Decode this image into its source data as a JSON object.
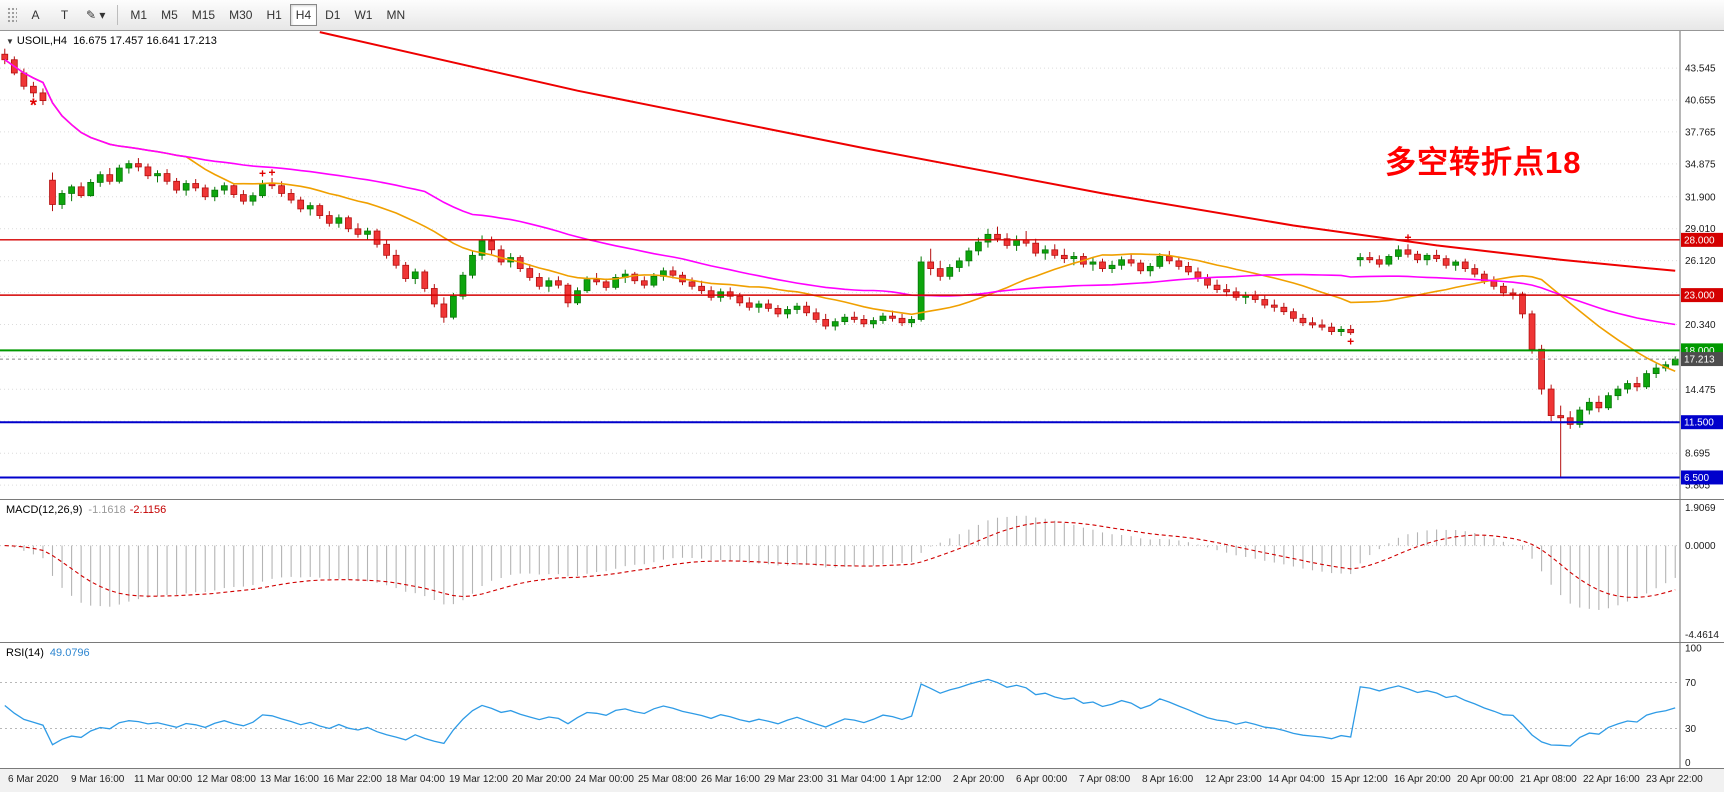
{
  "toolbar": {
    "tools": [
      {
        "label": "A",
        "dropdown": false
      },
      {
        "label": "T",
        "dropdown": false
      },
      {
        "label": "✎",
        "dropdown": true
      }
    ],
    "timeframes": [
      "M1",
      "M5",
      "M15",
      "M30",
      "H1",
      "H4",
      "D1",
      "W1",
      "MN"
    ],
    "active_timeframe": "H4"
  },
  "chart": {
    "collapse_icon": "▼",
    "symbol_period": "USOIL,H4",
    "ohlc_text": "16.675 17.457 16.641 17.213",
    "annotation": "多空转折点18",
    "price_axis": {
      "ticks": [
        {
          "v": 43.545,
          "label": "43.545"
        },
        {
          "v": 40.655,
          "label": "40.655"
        },
        {
          "v": 37.765,
          "label": "37.765"
        },
        {
          "v": 34.875,
          "label": "34.875"
        },
        {
          "v": 31.9,
          "label": "31.900"
        },
        {
          "v": 29.01,
          "label": "29.010"
        },
        {
          "v": 26.12,
          "label": "26.120"
        },
        {
          "v": 20.34,
          "label": "20.340"
        },
        {
          "v": 14.475,
          "label": "14.475"
        },
        {
          "v": 8.695,
          "label": "8.695"
        },
        {
          "v": 5.805,
          "label": "5.805"
        }
      ],
      "grid_values": [
        43.545,
        40.655,
        37.765,
        34.875,
        31.9,
        29.01,
        26.12,
        23.23,
        20.34,
        17.45,
        14.475,
        11.585,
        8.695,
        5.805
      ]
    },
    "hlines": [
      {
        "value": 28.0,
        "label": "28.000",
        "color": "#d40000",
        "width": 1.4
      },
      {
        "value": 23.0,
        "label": "23.000",
        "color": "#d40000",
        "width": 1.4
      },
      {
        "value": 18.0,
        "label": "18.000",
        "color": "#009900",
        "width": 2
      },
      {
        "value": 11.5,
        "label": "11.500",
        "color": "#0000cc",
        "width": 2
      },
      {
        "value": 6.5,
        "label": "6.500",
        "color": "#0000cc",
        "width": 2
      }
    ],
    "current_price": {
      "value": 17.213,
      "label": "17.213",
      "badge_color": "#4d4d4d"
    }
  },
  "macd": {
    "name": "MACD(12,26,9)",
    "value_main": "-1.1618",
    "value_signal": "-2.1156",
    "axis_labels": [
      {
        "v": 1.9069,
        "label": "1.9069"
      },
      {
        "v": 0,
        "label": "0.0000"
      },
      {
        "v": -4.4614,
        "label": "-4.4614"
      }
    ]
  },
  "rsi": {
    "name": "RSI(14)",
    "value": "49.0796",
    "axis_labels": [
      {
        "v": 100,
        "label": "100"
      },
      {
        "v": 70,
        "label": "70"
      },
      {
        "v": 30,
        "label": "30"
      },
      {
        "v": 0,
        "label": "0"
      }
    ]
  },
  "time_axis": [
    "6 Mar 2020",
    "9 Mar 16:00",
    "11 Mar 00:00",
    "12 Mar 08:00",
    "13 Mar 16:00",
    "16 Mar 22:00",
    "18 Mar 04:00",
    "19 Mar 12:00",
    "20 Mar 20:00",
    "24 Mar 00:00",
    "25 Mar 08:00",
    "26 Mar 16:00",
    "29 Mar 23:00",
    "31 Mar 04:00",
    "1 Apr 12:00",
    "2 Apr 20:00",
    "6 Apr 00:00",
    "7 Apr 08:00",
    "8 Apr 16:00",
    "12 Apr 23:00",
    "14 Apr 04:00",
    "15 Apr 12:00",
    "16 Apr 20:00",
    "20 Apr 00:00",
    "21 Apr 08:00",
    "22 Apr 16:00",
    "23 Apr 22:00"
  ],
  "chart_data": {
    "type": "candlestick",
    "symbol": "USOIL",
    "timeframe": "H4",
    "price_range": {
      "min": 4.55,
      "max": 46.9
    },
    "colors": {
      "up": "#0da50d",
      "up_border": "#067806",
      "down": "#ef3535",
      "down_border": "#b40f0f"
    },
    "candles": [
      [
        44.8,
        45.3,
        43.9,
        44.3
      ],
      [
        44.3,
        44.6,
        42.9,
        43.1
      ],
      [
        43.1,
        43.5,
        41.6,
        41.9
      ],
      [
        41.9,
        42.3,
        40.9,
        41.3
      ],
      [
        41.3,
        41.7,
        40.2,
        40.6
      ],
      [
        33.4,
        34.1,
        30.6,
        31.2
      ],
      [
        31.2,
        32.5,
        30.8,
        32.2
      ],
      [
        32.2,
        33.0,
        31.5,
        32.8
      ],
      [
        32.8,
        33.2,
        31.8,
        32.0
      ],
      [
        32.0,
        33.5,
        31.9,
        33.2
      ],
      [
        33.2,
        34.2,
        32.8,
        33.9
      ],
      [
        33.9,
        34.5,
        33.0,
        33.3
      ],
      [
        33.3,
        34.8,
        33.1,
        34.5
      ],
      [
        34.5,
        35.2,
        34.0,
        34.9
      ],
      [
        34.9,
        35.4,
        34.2,
        34.6
      ],
      [
        34.6,
        34.9,
        33.5,
        33.8
      ],
      [
        33.8,
        34.3,
        33.2,
        34.0
      ],
      [
        34.0,
        34.4,
        33.0,
        33.3
      ],
      [
        33.3,
        33.6,
        32.2,
        32.5
      ],
      [
        32.5,
        33.4,
        32.0,
        33.1
      ],
      [
        33.1,
        33.5,
        32.4,
        32.7
      ],
      [
        32.7,
        33.0,
        31.6,
        31.9
      ],
      [
        31.9,
        32.8,
        31.5,
        32.5
      ],
      [
        32.5,
        33.2,
        32.1,
        32.9
      ],
      [
        32.9,
        33.1,
        31.8,
        32.1
      ],
      [
        32.1,
        32.5,
        31.2,
        31.5
      ],
      [
        31.5,
        32.3,
        31.1,
        32.0
      ],
      [
        32.0,
        33.4,
        31.8,
        33.1
      ],
      [
        33.1,
        33.6,
        32.6,
        32.9
      ],
      [
        32.9,
        33.3,
        31.9,
        32.2
      ],
      [
        32.2,
        32.6,
        31.3,
        31.6
      ],
      [
        31.6,
        31.9,
        30.5,
        30.8
      ],
      [
        30.8,
        31.4,
        30.2,
        31.1
      ],
      [
        31.1,
        31.3,
        29.9,
        30.2
      ],
      [
        30.2,
        30.6,
        29.2,
        29.5
      ],
      [
        29.5,
        30.3,
        29.1,
        30.0
      ],
      [
        30.0,
        30.2,
        28.7,
        29.0
      ],
      [
        29.0,
        29.5,
        28.2,
        28.5
      ],
      [
        28.5,
        29.1,
        28.0,
        28.8
      ],
      [
        28.8,
        29.0,
        27.3,
        27.6
      ],
      [
        27.6,
        28.0,
        26.3,
        26.6
      ],
      [
        26.6,
        27.1,
        25.4,
        25.7
      ],
      [
        25.7,
        26.0,
        24.2,
        24.5
      ],
      [
        24.5,
        25.4,
        24.0,
        25.1
      ],
      [
        25.1,
        25.3,
        23.3,
        23.6
      ],
      [
        23.6,
        24.0,
        21.9,
        22.2
      ],
      [
        22.2,
        22.8,
        20.5,
        21.0
      ],
      [
        21.0,
        23.2,
        20.8,
        22.9
      ],
      [
        22.9,
        25.1,
        22.6,
        24.8
      ],
      [
        24.8,
        27.0,
        24.5,
        26.6
      ],
      [
        26.6,
        28.4,
        26.2,
        27.9
      ],
      [
        27.9,
        28.3,
        26.7,
        27.1
      ],
      [
        27.1,
        27.5,
        25.7,
        26.0
      ],
      [
        26.0,
        26.8,
        25.5,
        26.4
      ],
      [
        26.4,
        26.6,
        25.1,
        25.4
      ],
      [
        25.4,
        25.8,
        24.3,
        24.6
      ],
      [
        24.6,
        25.0,
        23.5,
        23.8
      ],
      [
        23.8,
        24.6,
        23.3,
        24.3
      ],
      [
        24.3,
        24.7,
        23.6,
        23.9
      ],
      [
        23.9,
        24.1,
        21.9,
        22.3
      ],
      [
        22.3,
        23.7,
        22.1,
        23.4
      ],
      [
        23.4,
        24.7,
        23.2,
        24.4
      ],
      [
        24.4,
        25.0,
        23.9,
        24.2
      ],
      [
        24.2,
        24.5,
        23.4,
        23.7
      ],
      [
        23.7,
        24.9,
        23.5,
        24.6
      ],
      [
        24.6,
        25.3,
        24.1,
        24.9
      ],
      [
        24.9,
        25.1,
        24.0,
        24.3
      ],
      [
        24.3,
        24.7,
        23.6,
        23.9
      ],
      [
        23.9,
        25.0,
        23.7,
        24.7
      ],
      [
        24.7,
        25.5,
        24.3,
        25.2
      ],
      [
        25.2,
        25.6,
        24.5,
        24.8
      ],
      [
        24.8,
        25.1,
        23.9,
        24.2
      ],
      [
        24.2,
        24.6,
        23.5,
        23.8
      ],
      [
        23.8,
        24.3,
        23.1,
        23.4
      ],
      [
        23.4,
        23.8,
        22.5,
        22.8
      ],
      [
        22.8,
        23.6,
        22.4,
        23.3
      ],
      [
        23.3,
        23.7,
        22.6,
        22.9
      ],
      [
        22.9,
        23.2,
        22.0,
        22.3
      ],
      [
        22.3,
        22.8,
        21.6,
        21.9
      ],
      [
        21.9,
        22.5,
        21.4,
        22.2
      ],
      [
        22.2,
        22.6,
        21.5,
        21.8
      ],
      [
        21.8,
        22.1,
        21.0,
        21.3
      ],
      [
        21.3,
        22.0,
        20.9,
        21.7
      ],
      [
        21.7,
        22.3,
        21.3,
        22.0
      ],
      [
        22.0,
        22.4,
        21.1,
        21.4
      ],
      [
        21.4,
        21.8,
        20.5,
        20.8
      ],
      [
        20.8,
        21.3,
        19.9,
        20.2
      ],
      [
        20.2,
        20.9,
        19.8,
        20.6
      ],
      [
        20.6,
        21.3,
        20.3,
        21.0
      ],
      [
        21.0,
        21.5,
        20.5,
        20.8
      ],
      [
        20.8,
        21.2,
        20.1,
        20.4
      ],
      [
        20.4,
        21.0,
        20.0,
        20.7
      ],
      [
        20.7,
        21.4,
        20.4,
        21.1
      ],
      [
        21.1,
        21.6,
        20.6,
        20.9
      ],
      [
        20.9,
        21.3,
        20.2,
        20.5
      ],
      [
        20.5,
        21.1,
        20.1,
        20.8
      ],
      [
        20.8,
        26.5,
        20.6,
        26.0
      ],
      [
        26.0,
        27.2,
        24.8,
        25.4
      ],
      [
        25.4,
        26.1,
        24.3,
        24.7
      ],
      [
        24.7,
        25.8,
        24.4,
        25.5
      ],
      [
        25.5,
        26.4,
        25.1,
        26.1
      ],
      [
        26.1,
        27.3,
        25.6,
        27.0
      ],
      [
        27.0,
        28.2,
        26.6,
        27.8
      ],
      [
        27.8,
        29.0,
        27.3,
        28.5
      ],
      [
        28.5,
        29.2,
        27.8,
        28.1
      ],
      [
        28.1,
        28.6,
        27.2,
        27.5
      ],
      [
        27.5,
        28.4,
        27.0,
        28.0
      ],
      [
        28.0,
        28.8,
        27.4,
        27.7
      ],
      [
        27.7,
        28.1,
        26.5,
        26.8
      ],
      [
        26.8,
        27.5,
        26.2,
        27.1
      ],
      [
        27.1,
        27.6,
        26.3,
        26.6
      ],
      [
        26.6,
        27.2,
        25.9,
        26.3
      ],
      [
        26.3,
        26.9,
        25.7,
        26.5
      ],
      [
        26.5,
        26.8,
        25.5,
        25.8
      ],
      [
        25.8,
        26.4,
        25.2,
        26.0
      ],
      [
        26.0,
        26.3,
        25.1,
        25.4
      ],
      [
        25.4,
        26.1,
        25.0,
        25.7
      ],
      [
        25.7,
        26.5,
        25.3,
        26.2
      ],
      [
        26.2,
        26.7,
        25.6,
        25.9
      ],
      [
        25.9,
        26.2,
        24.9,
        25.2
      ],
      [
        25.2,
        25.9,
        24.7,
        25.6
      ],
      [
        25.6,
        26.8,
        25.4,
        26.5
      ],
      [
        26.5,
        27.0,
        25.8,
        26.1
      ],
      [
        26.1,
        26.5,
        25.3,
        25.6
      ],
      [
        25.6,
        26.0,
        24.8,
        25.1
      ],
      [
        25.1,
        25.5,
        24.2,
        24.5
      ],
      [
        24.5,
        24.9,
        23.6,
        23.9
      ],
      [
        23.9,
        24.4,
        23.2,
        23.5
      ],
      [
        23.5,
        24.0,
        22.9,
        23.3
      ],
      [
        23.3,
        23.7,
        22.5,
        22.8
      ],
      [
        22.8,
        23.3,
        22.2,
        23.0
      ],
      [
        23.0,
        23.4,
        22.3,
        22.6
      ],
      [
        22.6,
        23.0,
        21.8,
        22.1
      ],
      [
        22.1,
        22.6,
        21.5,
        21.9
      ],
      [
        21.9,
        22.3,
        21.2,
        21.5
      ],
      [
        21.5,
        21.8,
        20.6,
        20.9
      ],
      [
        20.9,
        21.3,
        20.2,
        20.5
      ],
      [
        20.5,
        21.0,
        20.0,
        20.3
      ],
      [
        20.3,
        20.8,
        19.8,
        20.1
      ],
      [
        20.1,
        20.5,
        19.4,
        19.7
      ],
      [
        19.7,
        20.2,
        19.3,
        19.9
      ],
      [
        19.9,
        20.3,
        19.4,
        19.6
      ],
      [
        26.2,
        26.8,
        25.6,
        26.4
      ],
      [
        26.4,
        26.9,
        25.9,
        26.2
      ],
      [
        26.2,
        26.6,
        25.5,
        25.8
      ],
      [
        25.8,
        26.7,
        25.6,
        26.5
      ],
      [
        26.5,
        27.5,
        26.2,
        27.1
      ],
      [
        27.1,
        27.6,
        26.4,
        26.7
      ],
      [
        26.7,
        27.0,
        25.9,
        26.2
      ],
      [
        26.2,
        26.8,
        25.7,
        26.6
      ],
      [
        26.6,
        27.1,
        26.0,
        26.3
      ],
      [
        26.3,
        26.6,
        25.4,
        25.7
      ],
      [
        25.7,
        26.2,
        25.2,
        26.0
      ],
      [
        26.0,
        26.3,
        25.1,
        25.4
      ],
      [
        25.4,
        25.8,
        24.6,
        24.9
      ],
      [
        24.9,
        25.2,
        24.0,
        24.3
      ],
      [
        24.3,
        24.7,
        23.5,
        23.8
      ],
      [
        23.8,
        24.1,
        22.9,
        23.2
      ],
      [
        23.2,
        23.6,
        22.6,
        23.1
      ],
      [
        23.1,
        23.3,
        20.9,
        21.3
      ],
      [
        21.3,
        21.6,
        17.7,
        18.1
      ],
      [
        18.1,
        18.5,
        14.0,
        14.5
      ],
      [
        14.5,
        14.9,
        11.6,
        12.1
      ],
      [
        12.1,
        13.0,
        6.5,
        11.9
      ],
      [
        11.9,
        12.5,
        10.9,
        11.3
      ],
      [
        11.3,
        12.9,
        11.0,
        12.6
      ],
      [
        12.6,
        13.7,
        12.2,
        13.3
      ],
      [
        13.3,
        13.9,
        12.4,
        12.8
      ],
      [
        12.8,
        14.2,
        12.6,
        13.9
      ],
      [
        13.9,
        14.8,
        13.5,
        14.5
      ],
      [
        14.5,
        15.3,
        14.1,
        15.0
      ],
      [
        15.0,
        15.6,
        14.3,
        14.7
      ],
      [
        14.7,
        16.2,
        14.5,
        15.9
      ],
      [
        15.9,
        16.8,
        15.5,
        16.4
      ],
      [
        16.4,
        17.0,
        16.1,
        16.7
      ],
      [
        16.675,
        17.457,
        16.641,
        17.213
      ]
    ],
    "sma_overlays": [
      {
        "period": 20,
        "color": "#f0a000"
      },
      {
        "period": 45,
        "color": "#ff00ff"
      }
    ],
    "long_ma_path": [
      [
        33,
        46.8
      ],
      [
        60,
        41.5
      ],
      [
        90,
        36.3
      ],
      [
        115,
        32.2
      ],
      [
        135,
        29.3
      ],
      [
        150,
        27.5
      ],
      [
        163,
        26.2
      ],
      [
        175,
        25.2
      ]
    ],
    "long_ma_color": "#ee0000",
    "markers": [
      {
        "i": 3,
        "price": 40.0,
        "glyph": "*"
      },
      {
        "i": 27,
        "price": 34.0,
        "glyph": "+"
      },
      {
        "i": 28,
        "price": 34.1,
        "glyph": "+"
      },
      {
        "i": 141,
        "price": 18.8,
        "glyph": "+"
      },
      {
        "i": 147,
        "price": 28.2,
        "glyph": "+"
      }
    ],
    "macd": {
      "fast": 12,
      "slow": 26,
      "signal": 9,
      "histogram_color": "#b4b4b4",
      "signal_color": "#d00000"
    },
    "rsi": {
      "period": 14,
      "color": "#2e9be6",
      "levels": [
        30,
        70
      ]
    }
  }
}
